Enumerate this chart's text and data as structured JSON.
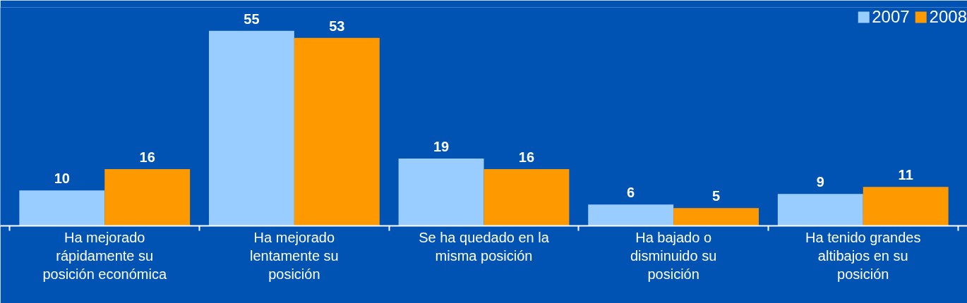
{
  "chart_data": {
    "type": "bar",
    "categories": [
      "Ha mejorado rápidamente su posición económica",
      "Ha mejorado lentamente su posición",
      "Se ha quedado en la misma posición",
      "Ha bajado o disminuido su posición",
      "Ha tenido grandes altibajos en su posición"
    ],
    "series": [
      {
        "name": "2007",
        "color": "#99ccff",
        "values": [
          10,
          55,
          19,
          6,
          9
        ]
      },
      {
        "name": "2008",
        "color": "#ff9900",
        "values": [
          16,
          53,
          16,
          5,
          11
        ]
      }
    ],
    "data_labels": true,
    "legend": "top right",
    "grid": false
  }
}
